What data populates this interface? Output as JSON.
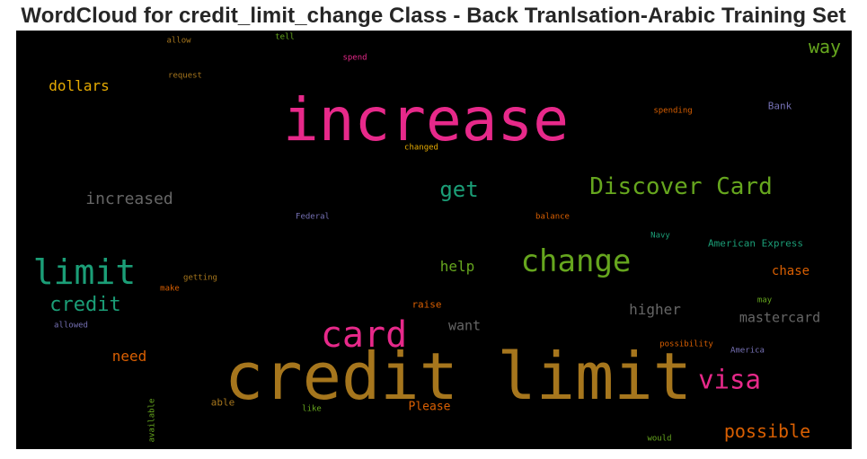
{
  "title": "WordCloud for credit_limit_change Class - Back Tranlsation-Arabic Training Set",
  "chart_data": {
    "type": "wordcloud",
    "words": [
      {
        "text": "credit limit",
        "color": "#a6761d",
        "weight": 1.0
      },
      {
        "text": "increase",
        "color": "#e7298a",
        "weight": 0.88
      },
      {
        "text": "card",
        "color": "#e7298a",
        "weight": 0.45
      },
      {
        "text": "limit",
        "color": "#1b9e77",
        "weight": 0.42
      },
      {
        "text": "change",
        "color": "#66a61e",
        "weight": 0.38
      },
      {
        "text": "Discover Card",
        "color": "#66a61e",
        "weight": 0.3
      },
      {
        "text": "visa",
        "color": "#e7298a",
        "weight": 0.3
      },
      {
        "text": "get",
        "color": "#1b9e77",
        "weight": 0.27
      },
      {
        "text": "credit",
        "color": "#1b9e77",
        "weight": 0.25
      },
      {
        "text": "increased",
        "color": "#666666",
        "weight": 0.21
      },
      {
        "text": "way",
        "color": "#66a61e",
        "weight": 0.22
      },
      {
        "text": "possible",
        "color": "#d95f02",
        "weight": 0.22
      },
      {
        "text": "dollars",
        "color": "#e6ab02",
        "weight": 0.18
      },
      {
        "text": "help",
        "color": "#66a61e",
        "weight": 0.18
      },
      {
        "text": "higher",
        "color": "#666666",
        "weight": 0.18
      },
      {
        "text": "mastercard",
        "color": "#666666",
        "weight": 0.17
      },
      {
        "text": "want",
        "color": "#666666",
        "weight": 0.17
      },
      {
        "text": "need",
        "color": "#d95f02",
        "weight": 0.17
      },
      {
        "text": "chase",
        "color": "#d95f02",
        "weight": 0.15
      },
      {
        "text": "Please",
        "color": "#d95f02",
        "weight": 0.14
      },
      {
        "text": "American Express",
        "color": "#1b9e77",
        "weight": 0.12
      },
      {
        "text": "Bank",
        "color": "#7570b3",
        "weight": 0.11
      },
      {
        "text": "raise",
        "color": "#d95f02",
        "weight": 0.12
      },
      {
        "text": "able",
        "color": "#a6761d",
        "weight": 0.12
      },
      {
        "text": "spending",
        "color": "#d95f02",
        "weight": 0.09
      },
      {
        "text": "changed",
        "color": "#e6ab02",
        "weight": 0.09
      },
      {
        "text": "Federal",
        "color": "#7570b3",
        "weight": 0.08
      },
      {
        "text": "balance",
        "color": "#d95f02",
        "weight": 0.08
      },
      {
        "text": "Navy",
        "color": "#1b9e77",
        "weight": 0.08
      },
      {
        "text": "getting",
        "color": "#a6761d",
        "weight": 0.08
      },
      {
        "text": "make",
        "color": "#d95f02",
        "weight": 0.08
      },
      {
        "text": "allowed",
        "color": "#7570b3",
        "weight": 0.08
      },
      {
        "text": "may",
        "color": "#66a61e",
        "weight": 0.08
      },
      {
        "text": "possibility",
        "color": "#d95f02",
        "weight": 0.08
      },
      {
        "text": "America",
        "color": "#7570b3",
        "weight": 0.08
      },
      {
        "text": "like",
        "color": "#66a61e",
        "weight": 0.08
      },
      {
        "text": "would",
        "color": "#66a61e",
        "weight": 0.08
      },
      {
        "text": "available",
        "color": "#66a61e",
        "weight": 0.08
      },
      {
        "text": "allow",
        "color": "#a6761d",
        "weight": 0.08
      },
      {
        "text": "tell",
        "color": "#66a61e",
        "weight": 0.08
      },
      {
        "text": "spend",
        "color": "#e7298a",
        "weight": 0.08
      },
      {
        "text": "request",
        "color": "#a6761d",
        "weight": 0.08
      }
    ]
  }
}
